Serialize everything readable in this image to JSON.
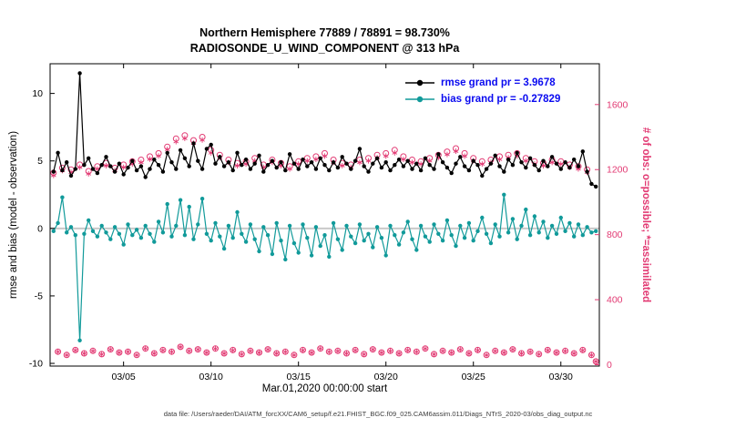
{
  "title": {
    "line1": "Northern Hemisphere 77889 / 78891 = 98.730%",
    "line2": "RADIOSONDE_U_WIND_COMPONENT @ 313 hPa"
  },
  "legend": {
    "rmse_label": "rmse grand pr = 3.9678",
    "bias_label": "bias grand pr = -0.27829",
    "text_color": "#0a0af0"
  },
  "caption": "data file: /Users/raeder/DAI/ATM_forcXX/CAM6_setup/f.e21.FHIST_BGC.f09_025.CAM6assim.011/Diags_NTrS_2020-03/obs_diag_output.nc",
  "colors": {
    "rmse": "#000000",
    "bias": "#119a9a",
    "obs": "#e23a73",
    "zero_line": "#c9c9c9",
    "axis": "#000000"
  },
  "chart_data": {
    "type": "line",
    "title": "Northern Hemisphere 77889 / 78891 = 98.730%  |  RADIOSONDE_U_WIND_COMPONENT @ 313 hPa",
    "xlabel": "Mar.01,2020 00:00:00 start",
    "ylabel_left": "rmse and bias (model - observation)",
    "ylabel_right": "# of obs: o=possible; *=assimilated",
    "x_start_day": 1.0,
    "x_step_days": 0.25,
    "x_tick_days": [
      5,
      10,
      15,
      20,
      25,
      30
    ],
    "x_tick_labels": [
      "03/05",
      "03/10",
      "03/15",
      "03/20",
      "03/25",
      "03/30"
    ],
    "ylim_left": [
      -10.2,
      12.2
    ],
    "yticks_left": [
      -10,
      -5,
      0,
      5,
      10
    ],
    "yticks_right": [
      0,
      400,
      800,
      1200,
      1600
    ],
    "grid": false,
    "legend_position": "top-right-inside",
    "stats": {
      "possible_total": 78891,
      "assimilated_total": 77889,
      "assimilated_percent": 98.73,
      "rmse_grand": 3.9678,
      "bias_grand": -0.27829,
      "level_hPa": 313
    },
    "series": [
      {
        "name": "rmse",
        "axis": "left",
        "marker": "filled-circle",
        "color": "#000000",
        "values": [
          4.2,
          5.6,
          4.3,
          4.9,
          3.9,
          4.4,
          11.5,
          4.7,
          5.2,
          4.4,
          4.1,
          4.7,
          5.3,
          4.6,
          4.2,
          4.8,
          4.0,
          4.5,
          5.0,
          4.3,
          4.6,
          3.8,
          4.4,
          5.1,
          4.7,
          4.2,
          5.6,
          4.9,
          4.4,
          5.8,
          5.2,
          4.6,
          6.3,
          5.0,
          4.4,
          5.9,
          6.2,
          4.8,
          5.3,
          4.6,
          4.9,
          4.3,
          5.6,
          4.7,
          5.1,
          4.4,
          4.8,
          5.4,
          4.2,
          4.7,
          5.0,
          4.5,
          4.9,
          4.3,
          5.5,
          4.8,
          4.4,
          5.1,
          4.6,
          4.9,
          4.4,
          5.2,
          4.7,
          4.3,
          4.9,
          4.5,
          5.3,
          4.8,
          4.4,
          5.0,
          5.9,
          4.6,
          4.2,
          4.8,
          5.2,
          4.5,
          4.9,
          4.3,
          4.7,
          5.1,
          4.6,
          5.0,
          4.4,
          4.8,
          4.3,
          5.2,
          4.7,
          4.4,
          5.5,
          4.9,
          4.5,
          4.1,
          4.8,
          5.3,
          4.6,
          4.3,
          5.0,
          4.7,
          3.9,
          4.4,
          4.8,
          5.4,
          4.6,
          4.2,
          5.1,
          4.7,
          5.6,
          4.9,
          4.5,
          5.2,
          4.7,
          4.3,
          5.0,
          4.6,
          5.3,
          4.8,
          4.4,
          4.9,
          4.5,
          5.1,
          4.6,
          5.7,
          4.2,
          3.3,
          3.1
        ]
      },
      {
        "name": "bias",
        "axis": "left",
        "marker": "filled-circle",
        "color": "#119a9a",
        "values": [
          -0.2,
          0.4,
          2.3,
          -0.3,
          0.1,
          -0.5,
          -8.3,
          -0.4,
          0.6,
          -0.2,
          -0.6,
          0.2,
          -0.3,
          -0.8,
          0.1,
          -0.4,
          -1.2,
          0.3,
          -0.5,
          -0.1,
          -0.7,
          0.2,
          -0.4,
          -1.0,
          0.5,
          -0.3,
          1.8,
          -0.6,
          0.2,
          2.1,
          -0.5,
          1.6,
          -0.8,
          0.3,
          2.2,
          -0.4,
          -0.9,
          0.4,
          -0.6,
          -1.5,
          0.2,
          -0.7,
          1.2,
          -0.4,
          -1.0,
          0.3,
          -0.8,
          -1.7,
          0.1,
          -0.5,
          -1.9,
          0.4,
          -0.9,
          -2.3,
          0.2,
          -1.1,
          -1.8,
          0.3,
          -0.7,
          -2.0,
          0.1,
          -1.3,
          -0.5,
          -2.1,
          0.4,
          -0.8,
          -1.6,
          0.2,
          -0.6,
          -1.1,
          0.3,
          -0.9,
          -0.4,
          -1.4,
          0.1,
          -0.7,
          -2.0,
          0.2,
          -0.5,
          -1.2,
          -0.3,
          0.5,
          -0.8,
          -1.6,
          0.2,
          -0.6,
          -1.0,
          0.3,
          -0.4,
          -0.9,
          0.6,
          -0.5,
          -1.3,
          0.2,
          -0.7,
          0.4,
          -0.9,
          -0.2,
          0.8,
          -0.4,
          -1.1,
          0.3,
          -0.6,
          2.5,
          -0.3,
          0.7,
          -0.8,
          0.2,
          1.4,
          -0.5,
          0.9,
          -0.3,
          0.5,
          -0.7,
          0.2,
          -0.4,
          0.8,
          -0.2,
          0.4,
          -0.6,
          0.3,
          -0.5,
          0.1,
          -0.3,
          -0.2
        ]
      },
      {
        "name": "possible",
        "axis": "right",
        "marker": "open-circle",
        "color": "#e23a73",
        "values": [
          1180,
          80,
          1210,
          60,
          1200,
          90,
          1230,
          70,
          1190,
          85,
          1220,
          65,
          1240,
          95,
          1210,
          75,
          1230,
          80,
          1250,
          60,
          1260,
          100,
          1280,
          70,
          1300,
          90,
          1340,
          80,
          1390,
          110,
          1410,
          85,
          1380,
          95,
          1400,
          75,
          1320,
          100,
          1290,
          70,
          1260,
          90,
          1240,
          65,
          1250,
          85,
          1270,
          75,
          1230,
          95,
          1260,
          70,
          1240,
          80,
          1220,
          60,
          1250,
          90,
          1270,
          75,
          1280,
          100,
          1300,
          80,
          1260,
          85,
          1240,
          70,
          1230,
          90,
          1260,
          65,
          1270,
          95,
          1290,
          75,
          1300,
          85,
          1320,
          70,
          1280,
          90,
          1260,
          80,
          1250,
          100,
          1270,
          65,
          1290,
          85,
          1310,
          75,
          1330,
          95,
          1300,
          70,
          1270,
          90,
          1250,
          60,
          1260,
          85,
          1280,
          75,
          1290,
          95,
          1300,
          70,
          1270,
          80,
          1250,
          65,
          1240,
          90,
          1260,
          75,
          1250,
          85,
          1230,
          70,
          1220,
          90,
          1200,
          60,
          20
        ]
      },
      {
        "name": "assimilated",
        "axis": "right",
        "marker": "asterisk",
        "color": "#e23a73",
        "values": [
          1164,
          79,
          1194,
          59,
          1184,
          89,
          1214,
          69,
          1174,
          84,
          1204,
          64,
          1224,
          94,
          1194,
          74,
          1214,
          79,
          1234,
          59,
          1244,
          99,
          1264,
          69,
          1284,
          89,
          1324,
          79,
          1372,
          109,
          1392,
          84,
          1362,
          94,
          1382,
          74,
          1303,
          99,
          1273,
          69,
          1244,
          89,
          1224,
          64,
          1234,
          84,
          1254,
          74,
          1214,
          94,
          1244,
          69,
          1224,
          79,
          1204,
          59,
          1234,
          89,
          1254,
          74,
          1263,
          99,
          1283,
          79,
          1244,
          84,
          1224,
          69,
          1214,
          89,
          1244,
          64,
          1254,
          94,
          1273,
          74,
          1283,
          84,
          1303,
          69,
          1263,
          89,
          1244,
          79,
          1234,
          99,
          1254,
          64,
          1273,
          84,
          1293,
          74,
          1313,
          94,
          1283,
          69,
          1254,
          89,
          1234,
          59,
          1244,
          84,
          1263,
          74,
          1273,
          94,
          1283,
          69,
          1254,
          79,
          1234,
          64,
          1224,
          89,
          1244,
          74,
          1234,
          84,
          1214,
          69,
          1204,
          89,
          1184,
          59,
          20
        ]
      }
    ]
  }
}
